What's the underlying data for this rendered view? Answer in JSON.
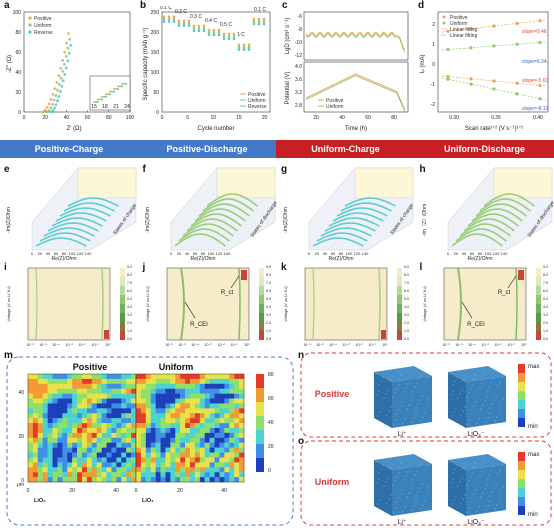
{
  "panels": {
    "a": {
      "label": "a",
      "xlabel": "Z' (Ω)",
      "ylabel": "-Z'' (Ω)",
      "legend": [
        "Positive",
        "Uniform",
        "Reverse"
      ],
      "xticks": [
        "0",
        "20",
        "40",
        "60",
        "80",
        "100"
      ],
      "yticks": [
        "0",
        "20",
        "40",
        "60",
        "80",
        "100"
      ],
      "inset_xticks": [
        "15",
        "18",
        "21",
        "24"
      ]
    },
    "b": {
      "label": "b",
      "xlabel": "Cycle number",
      "ylabel": "Specific capacity (mAh g⁻¹)",
      "legend": [
        "Positive",
        "Uniform",
        "Reverse"
      ],
      "xticks": [
        "0",
        "5",
        "10",
        "15",
        "20"
      ],
      "yticks": [
        "0",
        "50",
        "100",
        "150",
        "200",
        "250"
      ],
      "rates": [
        "0.1 C",
        "0.2 C",
        "0.3 C",
        "0.4 C",
        "0.5 C",
        "1 C",
        "0.1 C"
      ]
    },
    "c": {
      "label": "c",
      "xlabel": "Time (h)",
      "ylabel_top": "LgD (cm² s⁻¹)",
      "ylabel_bottom": "Potential (V)",
      "legend": [
        "Positive",
        "Uniform"
      ],
      "xticks": [
        "20",
        "40",
        "60",
        "80"
      ],
      "yticks_top": [
        "-6",
        "-8",
        "-10",
        "-12"
      ],
      "yticks_bottom": [
        "4.0",
        "3.6",
        "3.2",
        "2.8"
      ]
    },
    "d": {
      "label": "d",
      "xlabel": "Scan rate¹ᐟ² (V s⁻¹)¹ᐟ²",
      "ylabel": "Iₚ (mA)",
      "legend": [
        "Positive",
        "Uniform",
        "Linear fitting",
        "Linear fitting"
      ],
      "xticks": [
        "0.30",
        "0.35",
        "0.40"
      ],
      "yticks": [
        "2",
        "1",
        "0",
        "-1",
        "-2"
      ],
      "slopes": [
        "slope=9.46",
        "slope=6.34",
        "slope=-5.63",
        "slope=-8.13"
      ]
    },
    "e": {
      "label": "e"
    },
    "f": {
      "label": "f"
    },
    "g": {
      "label": "g"
    },
    "h": {
      "label": "h"
    },
    "i": {
      "label": "i"
    },
    "j": {
      "label": "j"
    },
    "k": {
      "label": "k"
    },
    "l": {
      "label": "l"
    },
    "m": {
      "label": "m"
    },
    "n": {
      "label": "n"
    },
    "o": {
      "label": "o"
    }
  },
  "banners": [
    "Positive-Charge",
    "Positive-Discharge",
    "Uniform-Charge",
    "Uniform-Discharge"
  ],
  "eis3d": {
    "xlabel": "Re(Z)/Ohm",
    "ylabel_a": "-Im(Z)/Ohm",
    "ylabel_b": "-Im（Z）/Ohm",
    "zlabel": "States of charge",
    "zlabel_d": "States of discharge",
    "xticks": [
      "0",
      "20",
      "40",
      "60",
      "80",
      "100",
      "120",
      "140"
    ]
  },
  "drt": {
    "xlabel": "τ (s)",
    "ylabel": "Voltage (V vs.Li⁺/Li)",
    "xticks": [
      "10⁻⁶",
      "10⁻⁵",
      "10⁻⁴",
      "10⁻³",
      "10⁻²",
      "10⁻¹",
      "10⁰"
    ],
    "cbar": [
      "0.0",
      "1.0",
      "2.0",
      "3.0",
      "4.0",
      "5.0",
      "6.0",
      "7.0",
      "8.0",
      "9.0"
    ],
    "rct": "R_CEI",
    "rct2": "R_ct"
  },
  "m": {
    "titles": [
      "Positive",
      "Uniform"
    ],
    "cbar": [
      "0",
      "20",
      "40",
      "60",
      "80"
    ],
    "xticks": [
      "0",
      "20",
      "40"
    ],
    "yticks": [
      "0",
      "20",
      "40"
    ],
    "xlabel": "μm",
    "species": "LiO₂"
  },
  "n": {
    "title": "Positive",
    "species": [
      "Li⁺",
      "LiO₂⁻"
    ],
    "cbar": [
      "max",
      "min"
    ]
  },
  "o": {
    "title": "Uniform",
    "species": [
      "Li⁺",
      "LiO₂⁻"
    ],
    "cbar": [
      "max",
      "min"
    ]
  },
  "colors": {
    "positive": "#f2a25b",
    "uniform": "#8fc96a",
    "reverse": "#4cc8cc",
    "blue": "#4b7ac7",
    "red": "#c81f24"
  }
}
